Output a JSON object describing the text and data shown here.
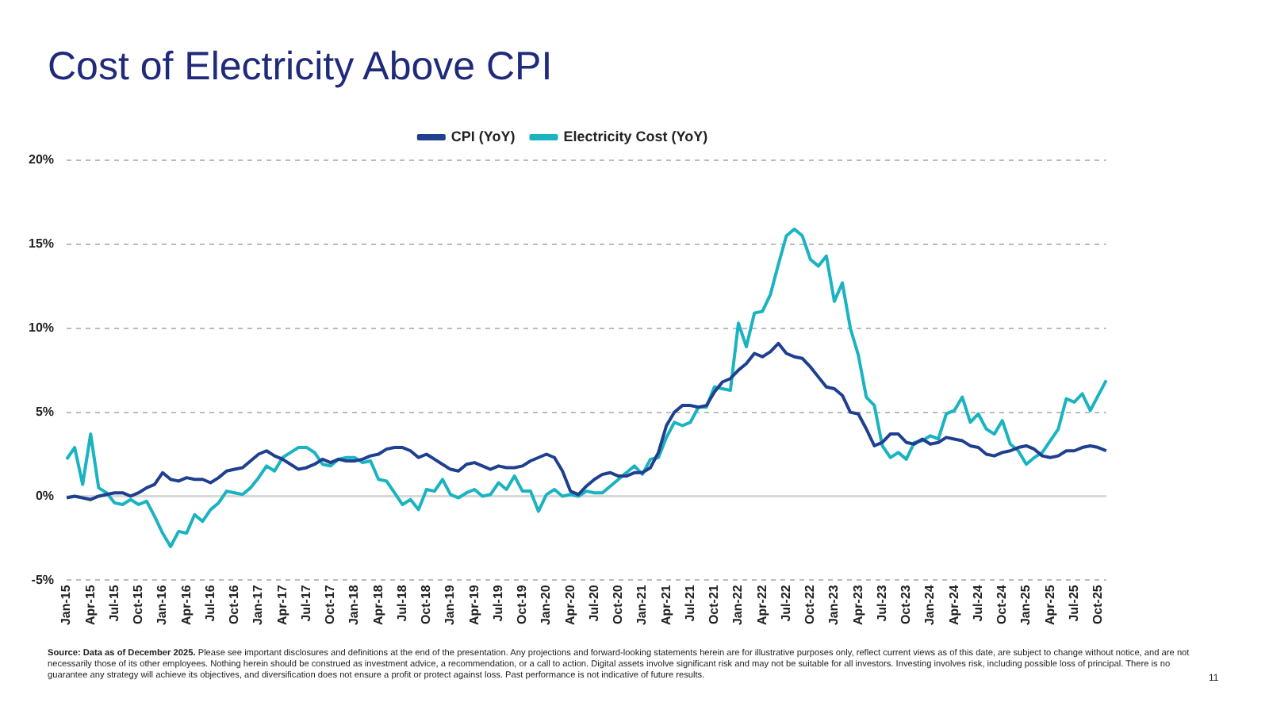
{
  "chart_data": {
    "type": "line",
    "title": "Cost of Electricity Above CPI",
    "categories": [
      "Jan-15",
      null,
      null,
      "Apr-15",
      null,
      null,
      "Jul-15",
      null,
      null,
      "Oct-15",
      null,
      null,
      "Jan-16",
      null,
      null,
      "Apr-16",
      null,
      null,
      "Jul-16",
      null,
      null,
      "Oct-16",
      null,
      null,
      "Jan-17",
      null,
      null,
      "Apr-17",
      null,
      null,
      "Jul-17",
      null,
      null,
      "Oct-17",
      null,
      null,
      "Jan-18",
      null,
      null,
      "Apr-18",
      null,
      null,
      "Jul-18",
      null,
      null,
      "Oct-18",
      null,
      null,
      "Jan-19",
      null,
      null,
      "Apr-19",
      null,
      null,
      "Jul-19",
      null,
      null,
      "Oct-19",
      null,
      null,
      "Jan-20",
      null,
      null,
      "Apr-20",
      null,
      null,
      "Jul-20",
      null,
      null,
      "Oct-20",
      null,
      null,
      "Jan-21",
      null,
      null,
      "Apr-21",
      null,
      null,
      "Jul-21",
      null,
      null,
      "Oct-21",
      null,
      null,
      "Jan-22",
      null,
      null,
      "Apr-22",
      null,
      null,
      "Jul-22",
      null,
      null,
      "Oct-22",
      null,
      null,
      "Jan-23",
      null,
      null,
      "Apr-23",
      null,
      null,
      "Jul-23",
      null,
      null,
      "Oct-23",
      null,
      null,
      "Jan-24",
      null,
      null,
      "Apr-24",
      null,
      null,
      "Jul-24",
      null,
      null,
      "Oct-24",
      null,
      null,
      "Jan-25",
      null,
      null,
      "Apr-25",
      null,
      null,
      "Jul-25",
      null,
      null,
      "Oct-25",
      null
    ],
    "series": [
      {
        "name": "CPI (YoY)",
        "color": "#1f3f8f",
        "values": [
          -0.1,
          0.0,
          -0.1,
          -0.2,
          0.0,
          0.1,
          0.2,
          0.2,
          0.0,
          0.2,
          0.5,
          0.7,
          1.4,
          1.0,
          0.9,
          1.1,
          1.0,
          1.0,
          0.8,
          1.1,
          1.5,
          1.6,
          1.7,
          2.1,
          2.5,
          2.7,
          2.4,
          2.2,
          1.9,
          1.6,
          1.7,
          1.9,
          2.2,
          2.0,
          2.2,
          2.1,
          2.1,
          2.2,
          2.4,
          2.5,
          2.8,
          2.9,
          2.9,
          2.7,
          2.3,
          2.5,
          2.2,
          1.9,
          1.6,
          1.5,
          1.9,
          2.0,
          1.8,
          1.6,
          1.8,
          1.7,
          1.7,
          1.8,
          2.1,
          2.3,
          2.5,
          2.3,
          1.5,
          0.3,
          0.1,
          0.6,
          1.0,
          1.3,
          1.4,
          1.2,
          1.2,
          1.4,
          1.4,
          1.7,
          2.6,
          4.2,
          5.0,
          5.4,
          5.4,
          5.3,
          5.4,
          6.2,
          6.8,
          7.0,
          7.5,
          7.9,
          8.5,
          8.3,
          8.6,
          9.1,
          8.5,
          8.3,
          8.2,
          7.7,
          7.1,
          6.5,
          6.4,
          6.0,
          5.0,
          4.9,
          4.0,
          3.0,
          3.2,
          3.7,
          3.7,
          3.2,
          3.1,
          3.4,
          3.1,
          3.2,
          3.5,
          3.4,
          3.3,
          3.0,
          2.9,
          2.5,
          2.4,
          2.6,
          2.7,
          2.9,
          3.0,
          2.8,
          2.4,
          2.3,
          2.4,
          2.7,
          2.7,
          2.9,
          3.0,
          2.9,
          2.7
        ]
      },
      {
        "name": "Electricity Cost (YoY)",
        "color": "#1ab3c2",
        "values": [
          2.2,
          2.9,
          0.7,
          3.7,
          0.5,
          0.2,
          -0.4,
          -0.5,
          -0.2,
          -0.5,
          -0.3,
          -1.2,
          -2.2,
          -3.0,
          -2.1,
          -2.2,
          -1.1,
          -1.5,
          -0.8,
          -0.4,
          0.3,
          0.2,
          0.1,
          0.5,
          1.1,
          1.8,
          1.5,
          2.3,
          2.6,
          2.9,
          2.9,
          2.6,
          1.9,
          1.8,
          2.2,
          2.3,
          2.3,
          2.0,
          2.1,
          1.0,
          0.9,
          0.2,
          -0.5,
          -0.2,
          -0.8,
          0.4,
          0.3,
          1.0,
          0.1,
          -0.1,
          0.2,
          0.4,
          0.0,
          0.1,
          0.8,
          0.4,
          1.2,
          0.3,
          0.3,
          -0.9,
          0.1,
          0.4,
          0.0,
          0.1,
          0.0,
          0.3,
          0.2,
          0.2,
          0.6,
          1.0,
          1.4,
          1.8,
          1.3,
          2.2,
          2.3,
          3.5,
          4.4,
          4.2,
          4.4,
          5.3,
          5.3,
          6.5,
          6.4,
          6.3,
          10.3,
          8.9,
          10.9,
          11.0,
          12.0,
          13.8,
          15.5,
          15.9,
          15.5,
          14.1,
          13.7,
          14.3,
          11.6,
          12.7,
          10.0,
          8.4,
          5.9,
          5.4,
          3.0,
          2.3,
          2.6,
          2.2,
          3.2,
          3.3,
          3.6,
          3.4,
          4.9,
          5.1,
          5.9,
          4.4,
          4.9,
          4.0,
          3.7,
          4.5,
          3.1,
          2.7,
          1.9,
          2.3,
          2.6,
          3.3,
          4.0,
          5.8,
          5.6,
          6.1,
          5.1,
          6.0,
          6.9
        ]
      }
    ],
    "ylim": [
      -5,
      20
    ],
    "yticks": [
      {
        "value": -5,
        "label": "-5%"
      },
      {
        "value": 0,
        "label": "0%"
      },
      {
        "value": 5,
        "label": "5%"
      },
      {
        "value": 10,
        "label": "10%"
      },
      {
        "value": 15,
        "label": "15%"
      },
      {
        "value": 20,
        "label": "20%"
      }
    ],
    "grid": "y",
    "legend": "top",
    "marker": "none",
    "line_style": "solid",
    "annotations": [
      "Source: Data as of December 2025.",
      "Please see important disclosures and definitions at the end of the presentation. Any projections and forward-looking statements herein are for illustrative purposes only, reflect current views as of this date, are subject to change without notice, and are not necessarily those of its other employees. Nothing herein should be construed as investment advice, a recommendation, or a call to action. Digital assets involve significant risk and may not be suitable for all investors. Investing involves risk, including possible loss of principal. There is no guarantee any strategy will achieve its objectives, and diversification does not ensure a profit or protect against loss. Past performance is not indicative of future results.",
      "11"
    ]
  }
}
